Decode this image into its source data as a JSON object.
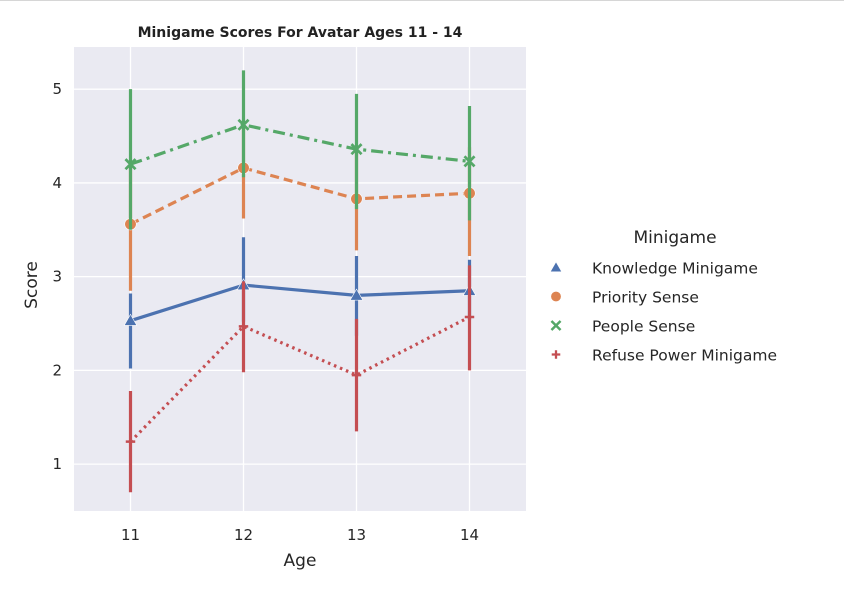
{
  "chart_data": {
    "type": "line",
    "title": "Minigame Scores For Avatar Ages 11 - 14",
    "xlabel": "Age",
    "ylabel": "Score",
    "categories": [
      "11",
      "12",
      "13",
      "14"
    ],
    "y_ticks": [
      "1",
      "2",
      "3",
      "4",
      "5"
    ],
    "ylim": [
      0.5,
      5.45
    ],
    "grid": true,
    "legend_title": "Minigame",
    "legend_position": "right, outside plot",
    "error_bars": true,
    "series": [
      {
        "name": "Knowledge Minigame",
        "color": "#4c72b0",
        "marker": "triangle",
        "linestyle": "solid",
        "values": [
          2.53,
          2.91,
          2.8,
          2.85
        ],
        "ci_low": [
          2.02,
          2.52,
          2.37,
          2.54
        ],
        "ci_high": [
          2.82,
          3.42,
          3.22,
          3.18
        ]
      },
      {
        "name": "Priority Sense",
        "color": "#dd8452",
        "marker": "circle",
        "linestyle": "dashed",
        "values": [
          3.56,
          4.16,
          3.83,
          3.89
        ],
        "ci_low": [
          2.85,
          3.62,
          3.28,
          3.22
        ],
        "ci_high": [
          4.18,
          4.66,
          4.33,
          4.38
        ]
      },
      {
        "name": "People Sense",
        "color": "#55a868",
        "marker": "x",
        "linestyle": "dashdot",
        "values": [
          4.2,
          4.62,
          4.36,
          4.23
        ],
        "ci_low": [
          3.5,
          4.06,
          3.72,
          3.6
        ],
        "ci_high": [
          5.0,
          5.2,
          4.95,
          4.82
        ]
      },
      {
        "name": "Refuse Power Minigame",
        "color": "#c44e52",
        "marker": "plus",
        "linestyle": "dotted",
        "values": [
          1.24,
          2.47,
          1.95,
          2.57
        ],
        "ci_low": [
          0.7,
          1.98,
          1.35,
          2.0
        ],
        "ci_high": [
          1.78,
          2.95,
          2.55,
          3.12
        ]
      }
    ]
  }
}
